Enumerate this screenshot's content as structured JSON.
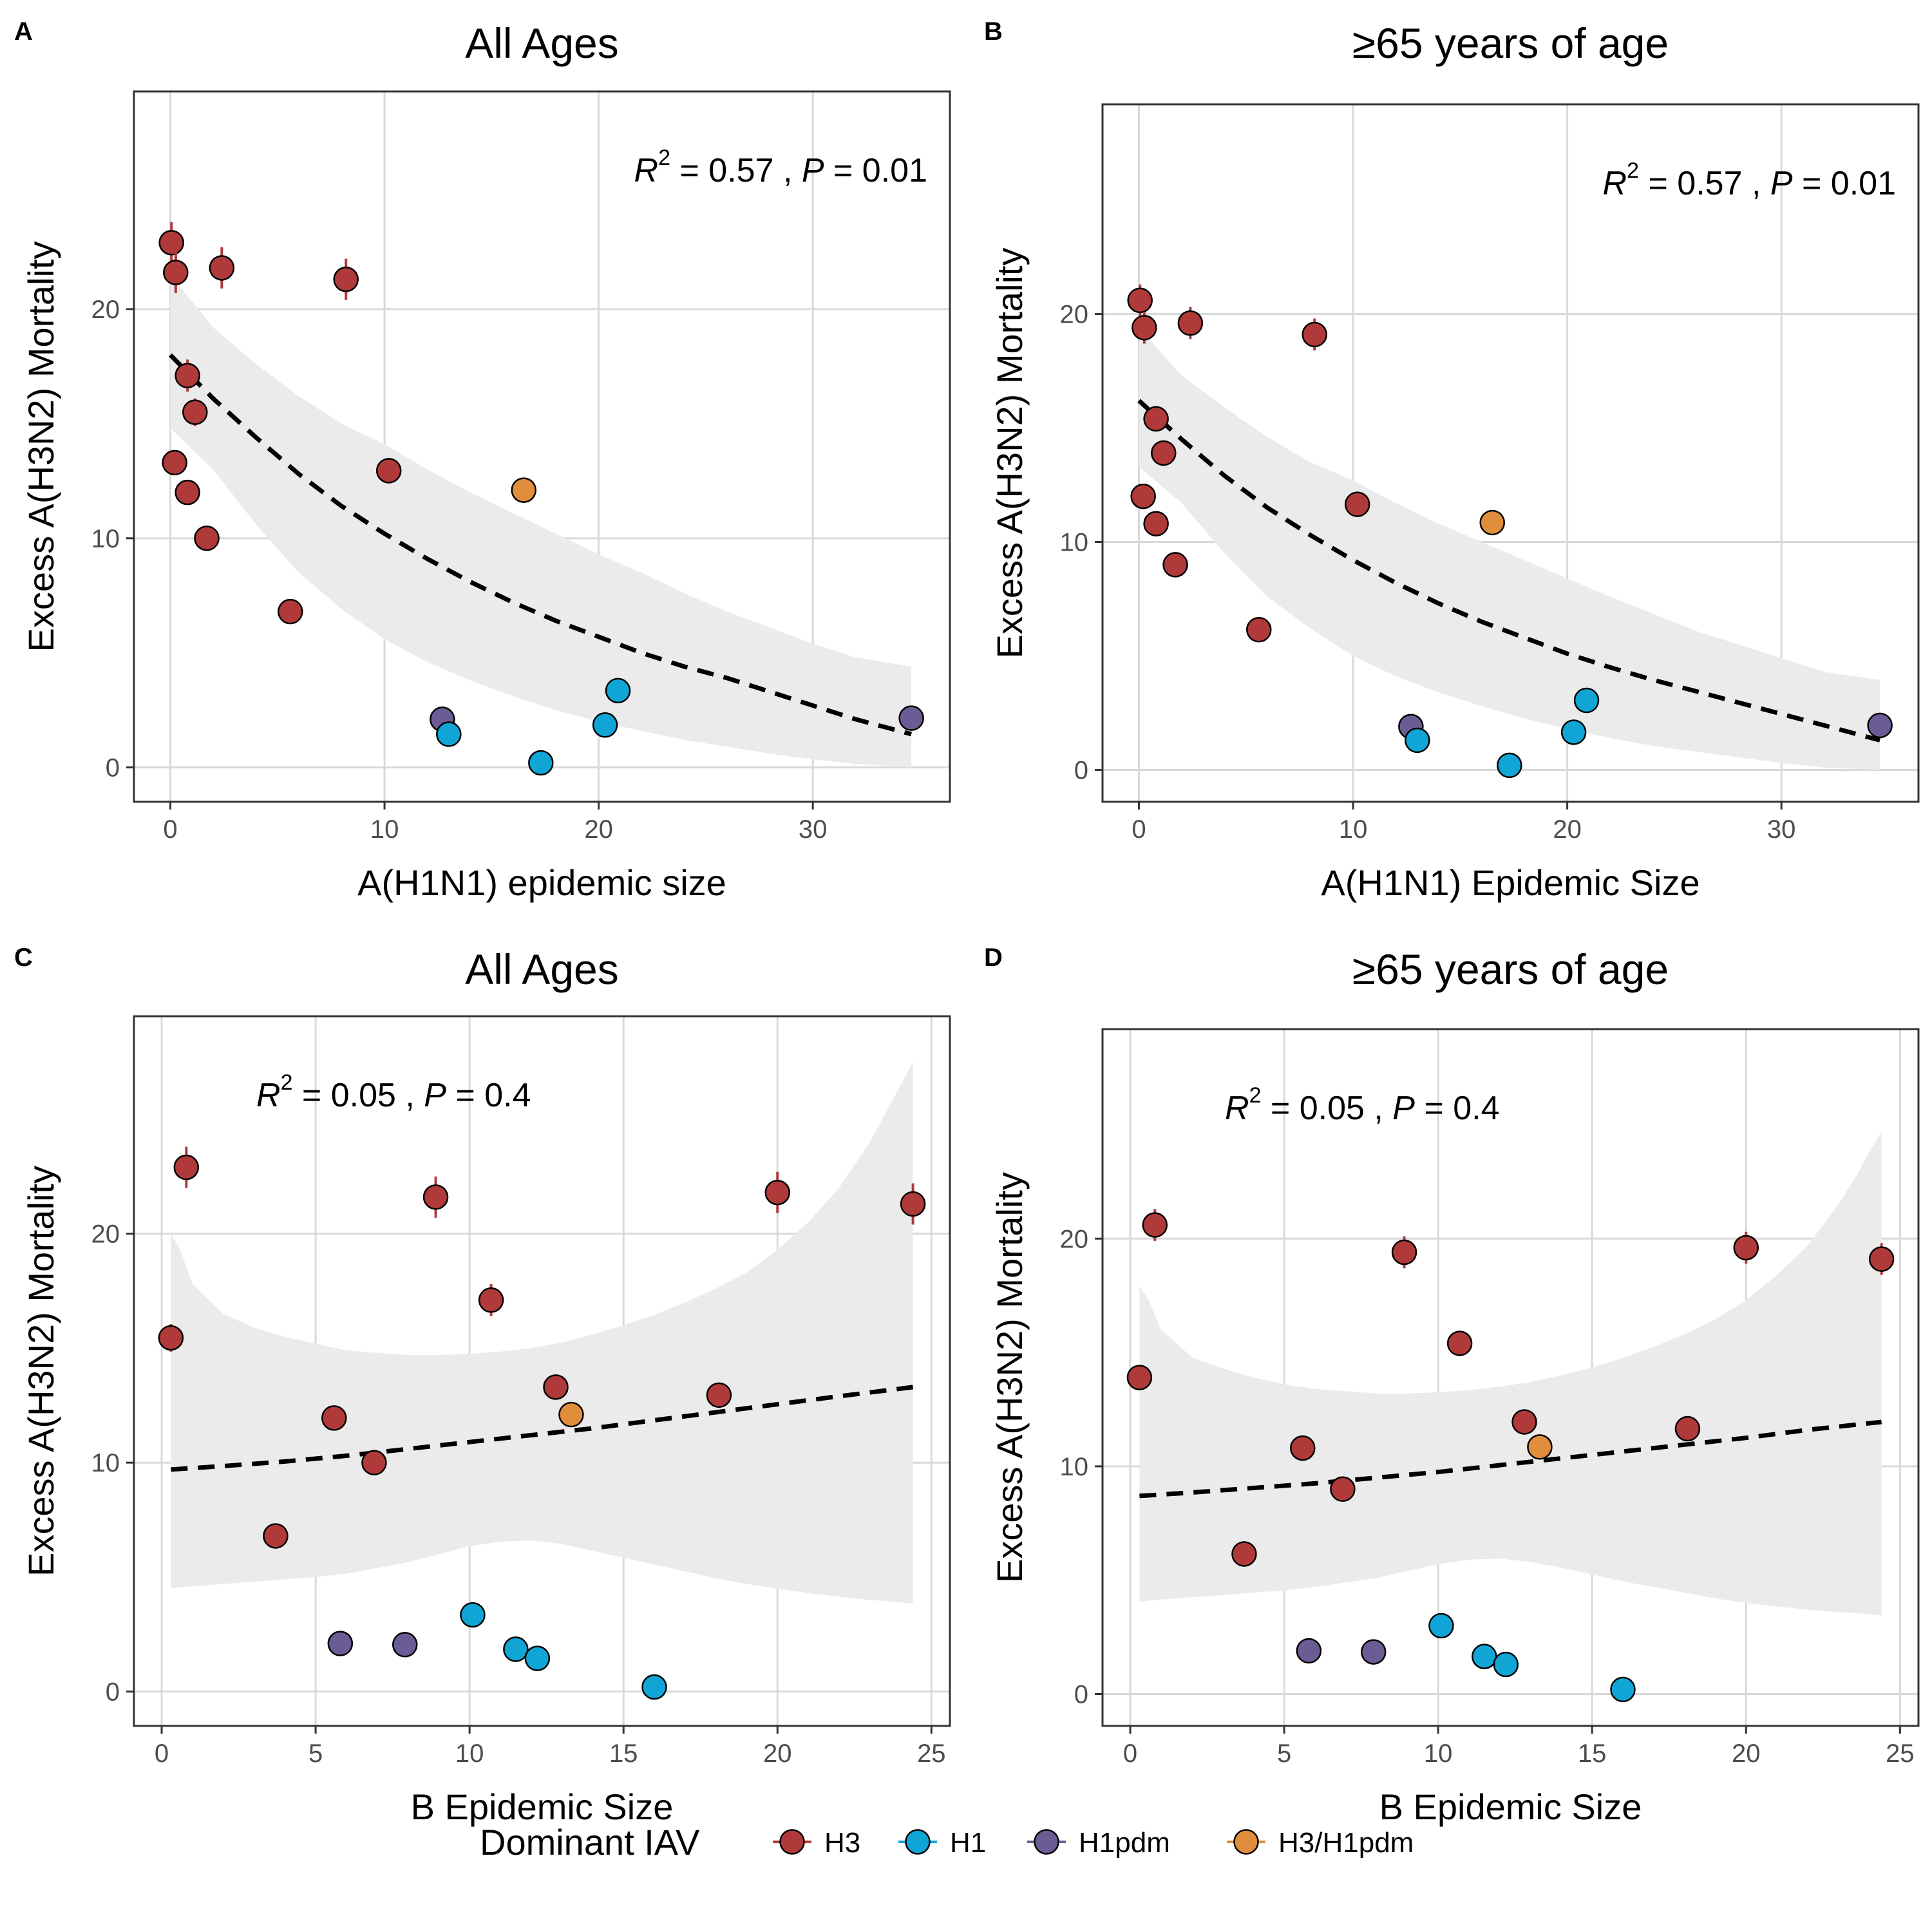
{
  "colors": {
    "H3": "#B03A3A",
    "H1": "#11A5D6",
    "H1pdm": "#6B5C95",
    "H3/H1pdm": "#E08E3C",
    "ribbon": "#EBEBEB",
    "grid": "#D9D9D9"
  },
  "legend": {
    "title": "Dominant IAV",
    "items": [
      {
        "key": "H3",
        "label": "H3"
      },
      {
        "key": "H1",
        "label": "H1"
      },
      {
        "key": "H1pdm",
        "label": "H1pdm"
      },
      {
        "key": "H3/H1pdm",
        "label": "H3/H1pdm"
      }
    ]
  },
  "chart_data": [
    {
      "panel": "A",
      "type": "scatter",
      "title": "All Ages",
      "xlabel": "A(H1N1) epidemic size",
      "ylabel": "Excess A(H3N2) Mortality",
      "xlim": [
        -1.7,
        36.4
      ],
      "ylim": [
        -1.5,
        29.5
      ],
      "xticks": [
        0,
        10,
        20,
        30
      ],
      "yticks": [
        0,
        10,
        20
      ],
      "annotation": {
        "r_label": "R",
        "r_exp": "2",
        "r_val": " = 0.57 , ",
        "p_label": "P",
        "p_val": " = 0.01"
      },
      "annotation_anchor": "top-right",
      "points": [
        {
          "x": 0.05,
          "y": 22.9,
          "err": 0.9,
          "group": "H3"
        },
        {
          "x": 0.25,
          "y": 21.6,
          "err": 0.9,
          "group": "H3"
        },
        {
          "x": 2.4,
          "y": 21.8,
          "err": 0.9,
          "group": "H3"
        },
        {
          "x": 8.2,
          "y": 21.3,
          "err": 0.9,
          "group": "H3"
        },
        {
          "x": 0.8,
          "y": 17.1,
          "err": 0.7,
          "group": "H3"
        },
        {
          "x": 1.15,
          "y": 15.5,
          "err": 0.6,
          "group": "H3"
        },
        {
          "x": 0.2,
          "y": 13.3,
          "err": 0.4,
          "group": "H3"
        },
        {
          "x": 0.8,
          "y": 12.0,
          "err": 0.4,
          "group": "H3"
        },
        {
          "x": 1.7,
          "y": 10.0,
          "err": 0.3,
          "group": "H3"
        },
        {
          "x": 5.6,
          "y": 6.8,
          "err": 0.3,
          "group": "H3"
        },
        {
          "x": 10.2,
          "y": 12.95,
          "err": 0.4,
          "group": "H3"
        },
        {
          "x": 16.5,
          "y": 12.1,
          "err": 0.4,
          "group": "H3/H1pdm"
        },
        {
          "x": 12.7,
          "y": 2.1,
          "err": 0.2,
          "group": "H1pdm"
        },
        {
          "x": 34.6,
          "y": 2.15,
          "err": 0.2,
          "group": "H1pdm"
        },
        {
          "x": 13.0,
          "y": 1.45,
          "err": 0.15,
          "group": "H1"
        },
        {
          "x": 17.3,
          "y": 0.2,
          "err": 0.1,
          "group": "H1"
        },
        {
          "x": 20.3,
          "y": 1.85,
          "err": 0.2,
          "group": "H1"
        },
        {
          "x": 20.9,
          "y": 3.35,
          "err": 0.2,
          "group": "H1"
        }
      ],
      "fit": {
        "x": [
          0,
          2,
          4,
          6,
          8,
          10,
          12,
          14,
          16,
          18,
          20,
          22,
          24,
          26,
          28,
          30,
          32,
          34.6
        ],
        "y": [
          18.0,
          16.1,
          14.4,
          12.8,
          11.4,
          10.2,
          9.1,
          8.1,
          7.2,
          6.4,
          5.7,
          5.0,
          4.4,
          3.9,
          3.3,
          2.7,
          2.1,
          1.45
        ]
      },
      "ribbon": {
        "x": [
          0,
          2,
          4,
          6,
          8,
          10,
          12,
          14,
          16,
          18,
          20,
          22,
          24,
          26,
          28,
          30,
          32,
          34.6
        ],
        "lower": [
          14.8,
          13.0,
          10.6,
          8.5,
          6.9,
          5.6,
          4.6,
          3.8,
          3.1,
          2.5,
          2.0,
          1.6,
          1.2,
          0.9,
          0.6,
          0.35,
          0.15,
          0.0
        ],
        "upper": [
          21.5,
          19.2,
          17.6,
          16.2,
          15.0,
          14.1,
          13.0,
          12.0,
          11.1,
          10.2,
          9.3,
          8.5,
          7.6,
          6.8,
          6.1,
          5.4,
          4.8,
          4.4
        ]
      }
    },
    {
      "panel": "B",
      "type": "scatter",
      "title": "≥65 years of age",
      "xlabel": "A(H1N1) Epidemic Size",
      "ylabel": "Excess A(H3N2) Mortality",
      "xlim": [
        -1.7,
        36.4
      ],
      "ylim": [
        -1.4,
        29.2
      ],
      "xticks": [
        0,
        10,
        20,
        30
      ],
      "yticks": [
        0,
        10,
        20
      ],
      "annotation": {
        "r_label": "R",
        "r_exp": "2",
        "r_val": " = 0.57 , ",
        "p_label": "P",
        "p_val": " = 0.01"
      },
      "annotation_anchor": "top-right",
      "points": [
        {
          "x": 0.05,
          "y": 20.6,
          "err": 0.7,
          "group": "H3"
        },
        {
          "x": 0.25,
          "y": 19.4,
          "err": 0.7,
          "group": "H3"
        },
        {
          "x": 2.4,
          "y": 19.6,
          "err": 0.7,
          "group": "H3"
        },
        {
          "x": 8.2,
          "y": 19.1,
          "err": 0.7,
          "group": "H3"
        },
        {
          "x": 0.8,
          "y": 15.4,
          "err": 0.5,
          "group": "H3"
        },
        {
          "x": 1.15,
          "y": 13.9,
          "err": 0.5,
          "group": "H3"
        },
        {
          "x": 0.2,
          "y": 12.0,
          "err": 0.4,
          "group": "H3"
        },
        {
          "x": 0.8,
          "y": 10.8,
          "err": 0.3,
          "group": "H3"
        },
        {
          "x": 1.7,
          "y": 9.0,
          "err": 0.3,
          "group": "H3"
        },
        {
          "x": 5.6,
          "y": 6.15,
          "err": 0.2,
          "group": "H3"
        },
        {
          "x": 10.2,
          "y": 11.65,
          "err": 0.3,
          "group": "H3"
        },
        {
          "x": 16.5,
          "y": 10.85,
          "err": 0.3,
          "group": "H3/H1pdm"
        },
        {
          "x": 12.7,
          "y": 1.9,
          "err": 0.15,
          "group": "H1pdm"
        },
        {
          "x": 34.6,
          "y": 1.95,
          "err": 0.15,
          "group": "H1pdm"
        },
        {
          "x": 13.0,
          "y": 1.3,
          "err": 0.1,
          "group": "H1"
        },
        {
          "x": 17.3,
          "y": 0.2,
          "err": 0.1,
          "group": "H1"
        },
        {
          "x": 20.3,
          "y": 1.65,
          "err": 0.15,
          "group": "H1"
        },
        {
          "x": 20.9,
          "y": 3.05,
          "err": 0.15,
          "group": "H1"
        }
      ],
      "fit": {
        "x": [
          0,
          2,
          4,
          6,
          8,
          10,
          12,
          14,
          16,
          18,
          20,
          22,
          24,
          26,
          28,
          30,
          32,
          34.6
        ],
        "y": [
          16.2,
          14.5,
          12.9,
          11.5,
          10.3,
          9.2,
          8.2,
          7.3,
          6.5,
          5.8,
          5.1,
          4.5,
          3.95,
          3.45,
          2.95,
          2.45,
          1.95,
          1.3
        ]
      },
      "ribbon": {
        "x": [
          0,
          2,
          4,
          6,
          8,
          10,
          12,
          14,
          16,
          18,
          20,
          22,
          24,
          26,
          28,
          30,
          32,
          34.6
        ],
        "lower": [
          13.3,
          11.7,
          9.5,
          7.6,
          6.2,
          5.0,
          4.1,
          3.4,
          2.8,
          2.25,
          1.8,
          1.4,
          1.05,
          0.8,
          0.55,
          0.3,
          0.1,
          0.0
        ],
        "upper": [
          19.4,
          17.3,
          15.9,
          14.6,
          13.5,
          12.7,
          11.7,
          10.8,
          10.0,
          9.2,
          8.4,
          7.6,
          6.85,
          6.1,
          5.5,
          4.9,
          4.3,
          3.95
        ]
      }
    },
    {
      "panel": "C",
      "type": "scatter",
      "title": "All Ages",
      "xlabel": "B Epidemic Size",
      "ylabel": "Excess A(H3N2) Mortality",
      "xlim": [
        -0.9,
        25.6
      ],
      "ylim": [
        -1.5,
        29.5
      ],
      "xticks": [
        0,
        5,
        10,
        15,
        20,
        25
      ],
      "yticks": [
        0,
        10,
        20
      ],
      "annotation": {
        "r_label": "R",
        "r_exp": "2",
        "r_val": " = 0.05 , ",
        "p_label": "P",
        "p_val": " = 0.4"
      },
      "annotation_anchor": "top-left",
      "points": [
        {
          "x": 0.8,
          "y": 22.9,
          "err": 0.9,
          "group": "H3"
        },
        {
          "x": 8.9,
          "y": 21.6,
          "err": 0.9,
          "group": "H3"
        },
        {
          "x": 20.0,
          "y": 21.8,
          "err": 0.9,
          "group": "H3"
        },
        {
          "x": 24.4,
          "y": 21.3,
          "err": 0.9,
          "group": "H3"
        },
        {
          "x": 10.7,
          "y": 17.1,
          "err": 0.7,
          "group": "H3"
        },
        {
          "x": 0.3,
          "y": 15.45,
          "err": 0.6,
          "group": "H3"
        },
        {
          "x": 12.8,
          "y": 13.3,
          "err": 0.4,
          "group": "H3"
        },
        {
          "x": 5.6,
          "y": 11.95,
          "err": 0.4,
          "group": "H3"
        },
        {
          "x": 6.9,
          "y": 10.0,
          "err": 0.3,
          "group": "H3"
        },
        {
          "x": 3.7,
          "y": 6.8,
          "err": 0.3,
          "group": "H3"
        },
        {
          "x": 18.1,
          "y": 12.95,
          "err": 0.4,
          "group": "H3"
        },
        {
          "x": 13.3,
          "y": 12.1,
          "err": 0.4,
          "group": "H3/H1pdm"
        },
        {
          "x": 5.8,
          "y": 2.1,
          "err": 0.2,
          "group": "H1pdm"
        },
        {
          "x": 7.9,
          "y": 2.05,
          "err": 0.2,
          "group": "H1pdm"
        },
        {
          "x": 10.1,
          "y": 3.35,
          "err": 0.2,
          "group": "H1"
        },
        {
          "x": 11.5,
          "y": 1.85,
          "err": 0.2,
          "group": "H1"
        },
        {
          "x": 12.2,
          "y": 1.45,
          "err": 0.15,
          "group": "H1"
        },
        {
          "x": 16.0,
          "y": 0.2,
          "err": 0.1,
          "group": "H1"
        }
      ],
      "fit": {
        "x": [
          0.3,
          2,
          4,
          6,
          8,
          10,
          12,
          14,
          16,
          18,
          20,
          22,
          24.4
        ],
        "y": [
          9.7,
          9.85,
          10.05,
          10.3,
          10.6,
          10.9,
          11.2,
          11.5,
          11.85,
          12.2,
          12.55,
          12.9,
          13.3
        ]
      },
      "ribbon": {
        "x": [
          0.3,
          0.6,
          1,
          2,
          3,
          4,
          5,
          6,
          7,
          8,
          9,
          10,
          11,
          12,
          13,
          14,
          15,
          16,
          17,
          18,
          19,
          20,
          21,
          22,
          23,
          23.6,
          24,
          24.4
        ],
        "lower": [
          4.5,
          4.55,
          4.6,
          4.7,
          4.8,
          4.9,
          5.0,
          5.15,
          5.4,
          5.65,
          6.0,
          6.35,
          6.55,
          6.6,
          6.45,
          6.15,
          5.85,
          5.55,
          5.25,
          4.95,
          4.7,
          4.5,
          4.3,
          4.15,
          4.0,
          3.95,
          3.9,
          3.85
        ],
        "upper": [
          20.0,
          19.3,
          17.8,
          16.5,
          15.9,
          15.5,
          15.2,
          14.9,
          14.8,
          14.7,
          14.7,
          14.75,
          14.85,
          15.0,
          15.25,
          15.6,
          16.0,
          16.45,
          17.0,
          17.6,
          18.3,
          19.3,
          20.5,
          22.0,
          24.0,
          25.5,
          26.5,
          27.5
        ]
      }
    },
    {
      "panel": "D",
      "type": "scatter",
      "title": "≥65 years of age",
      "xlabel": "B Epidemic Size",
      "ylabel": "Excess A(H3N2) Mortality",
      "xlim": [
        -0.9,
        25.6
      ],
      "ylim": [
        -1.4,
        29.2
      ],
      "xticks": [
        0,
        5,
        10,
        15,
        20,
        25
      ],
      "yticks": [
        0,
        10,
        20
      ],
      "annotation": {
        "r_label": "R",
        "r_exp": "2",
        "r_val": " = 0.05 , ",
        "p_label": "P",
        "p_val": " = 0.4"
      },
      "annotation_anchor": "top-left",
      "points": [
        {
          "x": 0.8,
          "y": 20.6,
          "err": 0.7,
          "group": "H3"
        },
        {
          "x": 8.9,
          "y": 19.4,
          "err": 0.7,
          "group": "H3"
        },
        {
          "x": 20.0,
          "y": 19.6,
          "err": 0.7,
          "group": "H3"
        },
        {
          "x": 24.4,
          "y": 19.1,
          "err": 0.7,
          "group": "H3"
        },
        {
          "x": 10.7,
          "y": 15.4,
          "err": 0.5,
          "group": "H3"
        },
        {
          "x": 0.3,
          "y": 13.9,
          "err": 0.5,
          "group": "H3"
        },
        {
          "x": 12.8,
          "y": 11.95,
          "err": 0.4,
          "group": "H3"
        },
        {
          "x": 5.6,
          "y": 10.8,
          "err": 0.3,
          "group": "H3"
        },
        {
          "x": 6.9,
          "y": 9.0,
          "err": 0.3,
          "group": "H3"
        },
        {
          "x": 3.7,
          "y": 6.15,
          "err": 0.2,
          "group": "H3"
        },
        {
          "x": 18.1,
          "y": 11.65,
          "err": 0.3,
          "group": "H3"
        },
        {
          "x": 13.3,
          "y": 10.85,
          "err": 0.3,
          "group": "H3/H1pdm"
        },
        {
          "x": 5.8,
          "y": 1.9,
          "err": 0.15,
          "group": "H1pdm"
        },
        {
          "x": 7.9,
          "y": 1.85,
          "err": 0.15,
          "group": "H1pdm"
        },
        {
          "x": 10.1,
          "y": 3.0,
          "err": 0.15,
          "group": "H1"
        },
        {
          "x": 11.5,
          "y": 1.65,
          "err": 0.15,
          "group": "H1"
        },
        {
          "x": 12.2,
          "y": 1.3,
          "err": 0.1,
          "group": "H1"
        },
        {
          "x": 16.0,
          "y": 0.2,
          "err": 0.1,
          "group": "H1"
        }
      ],
      "fit": {
        "x": [
          0.3,
          2,
          4,
          6,
          8,
          10,
          12,
          14,
          16,
          18,
          20,
          22,
          24.4
        ],
        "y": [
          8.7,
          8.85,
          9.05,
          9.25,
          9.5,
          9.75,
          10.05,
          10.35,
          10.65,
          10.95,
          11.25,
          11.6,
          11.95
        ]
      },
      "ribbon": {
        "x": [
          0.3,
          0.6,
          1,
          2,
          3,
          4,
          5,
          6,
          7,
          8,
          9,
          10,
          11,
          12,
          13,
          14,
          15,
          16,
          17,
          18,
          19,
          20,
          21,
          22,
          23,
          23.6,
          24,
          24.4
        ],
        "lower": [
          4.05,
          4.1,
          4.15,
          4.25,
          4.35,
          4.45,
          4.55,
          4.7,
          4.9,
          5.1,
          5.4,
          5.7,
          5.9,
          5.95,
          5.8,
          5.55,
          5.25,
          4.95,
          4.7,
          4.45,
          4.2,
          4.0,
          3.85,
          3.7,
          3.6,
          3.55,
          3.5,
          3.45
        ],
        "upper": [
          17.9,
          17.3,
          16.0,
          14.8,
          14.3,
          13.9,
          13.6,
          13.4,
          13.3,
          13.2,
          13.2,
          13.25,
          13.35,
          13.5,
          13.7,
          14.0,
          14.35,
          14.75,
          15.25,
          15.8,
          16.45,
          17.3,
          18.4,
          19.7,
          21.5,
          22.8,
          23.8,
          24.7
        ]
      }
    }
  ]
}
